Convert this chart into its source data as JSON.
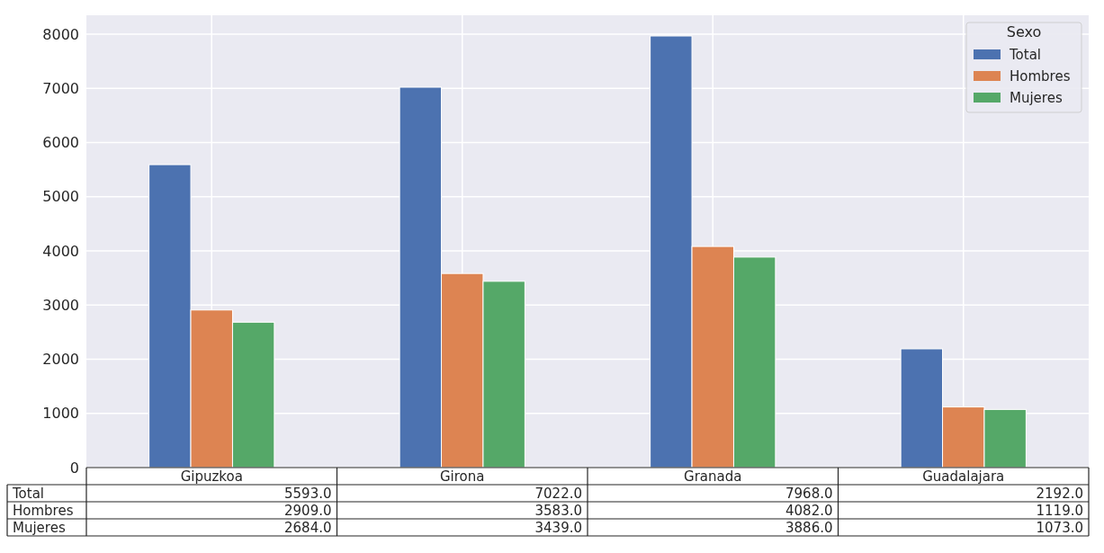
{
  "chart_data": {
    "type": "bar",
    "categories": [
      "Gipuzkoa",
      "Girona",
      "Granada",
      "Guadalajara"
    ],
    "series": [
      {
        "name": "Total",
        "color": "#4c72b0",
        "values": [
          5593,
          7022,
          7968,
          2192
        ],
        "value_labels": [
          "5593.0",
          "7022.0",
          "7968.0",
          "2192.0"
        ]
      },
      {
        "name": "Hombres",
        "color": "#dd8452",
        "values": [
          2909,
          3583,
          4082,
          1119
        ],
        "value_labels": [
          "2909.0",
          "3583.0",
          "4082.0",
          "1119.0"
        ]
      },
      {
        "name": "Mujeres",
        "color": "#55a868",
        "values": [
          2684,
          3439,
          3886,
          1073
        ],
        "value_labels": [
          "2684.0",
          "3439.0",
          "3886.0",
          "1073.0"
        ]
      }
    ],
    "ylim": [
      0,
      8350
    ],
    "yticks": [
      0,
      1000,
      2000,
      3000,
      4000,
      5000,
      6000,
      7000,
      8000
    ],
    "grid": true,
    "legend": "top right",
    "legend_title": "Sexo"
  }
}
